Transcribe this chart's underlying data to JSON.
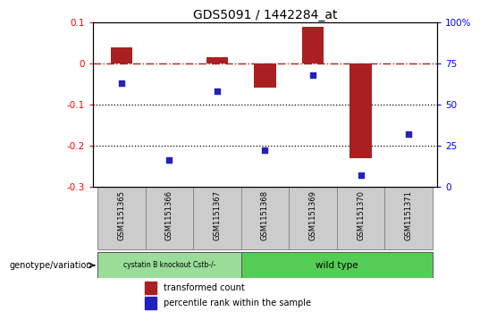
{
  "title": "GDS5091 / 1442284_at",
  "samples": [
    "GSM1151365",
    "GSM1151366",
    "GSM1151367",
    "GSM1151368",
    "GSM1151369",
    "GSM1151370",
    "GSM1151371"
  ],
  "transformed_count": [
    0.04,
    0.0,
    0.015,
    -0.06,
    0.09,
    -0.23,
    0.0
  ],
  "percentile_rank": [
    63,
    16,
    58,
    22,
    68,
    7,
    32
  ],
  "ylim_left": [
    -0.3,
    0.1
  ],
  "ylim_right": [
    0,
    100
  ],
  "yticks_left": [
    -0.3,
    -0.2,
    -0.1,
    0.0,
    0.1
  ],
  "yticks_right": [
    0,
    25,
    50,
    75,
    100
  ],
  "ytick_labels_left": [
    "-0.3",
    "-0.2",
    "-0.1",
    "0",
    "0.1"
  ],
  "ytick_labels_right": [
    "0",
    "25",
    "50",
    "75",
    "100%"
  ],
  "hline_y": 0,
  "dotted_lines": [
    -0.1,
    -0.2
  ],
  "bar_color": "#aa2020",
  "dot_color": "#2222bb",
  "bar_width": 0.45,
  "group1_label": "cystatin B knockout Cstb-/-",
  "group2_label": "wild type",
  "group1_indices": [
    0,
    1,
    2
  ],
  "group2_indices": [
    3,
    4,
    5,
    6
  ],
  "group1_color": "#99dd99",
  "group2_color": "#55cc55",
  "legend_bar_label": "transformed count",
  "legend_dot_label": "percentile rank within the sample",
  "genotype_label": "genotype/variation"
}
